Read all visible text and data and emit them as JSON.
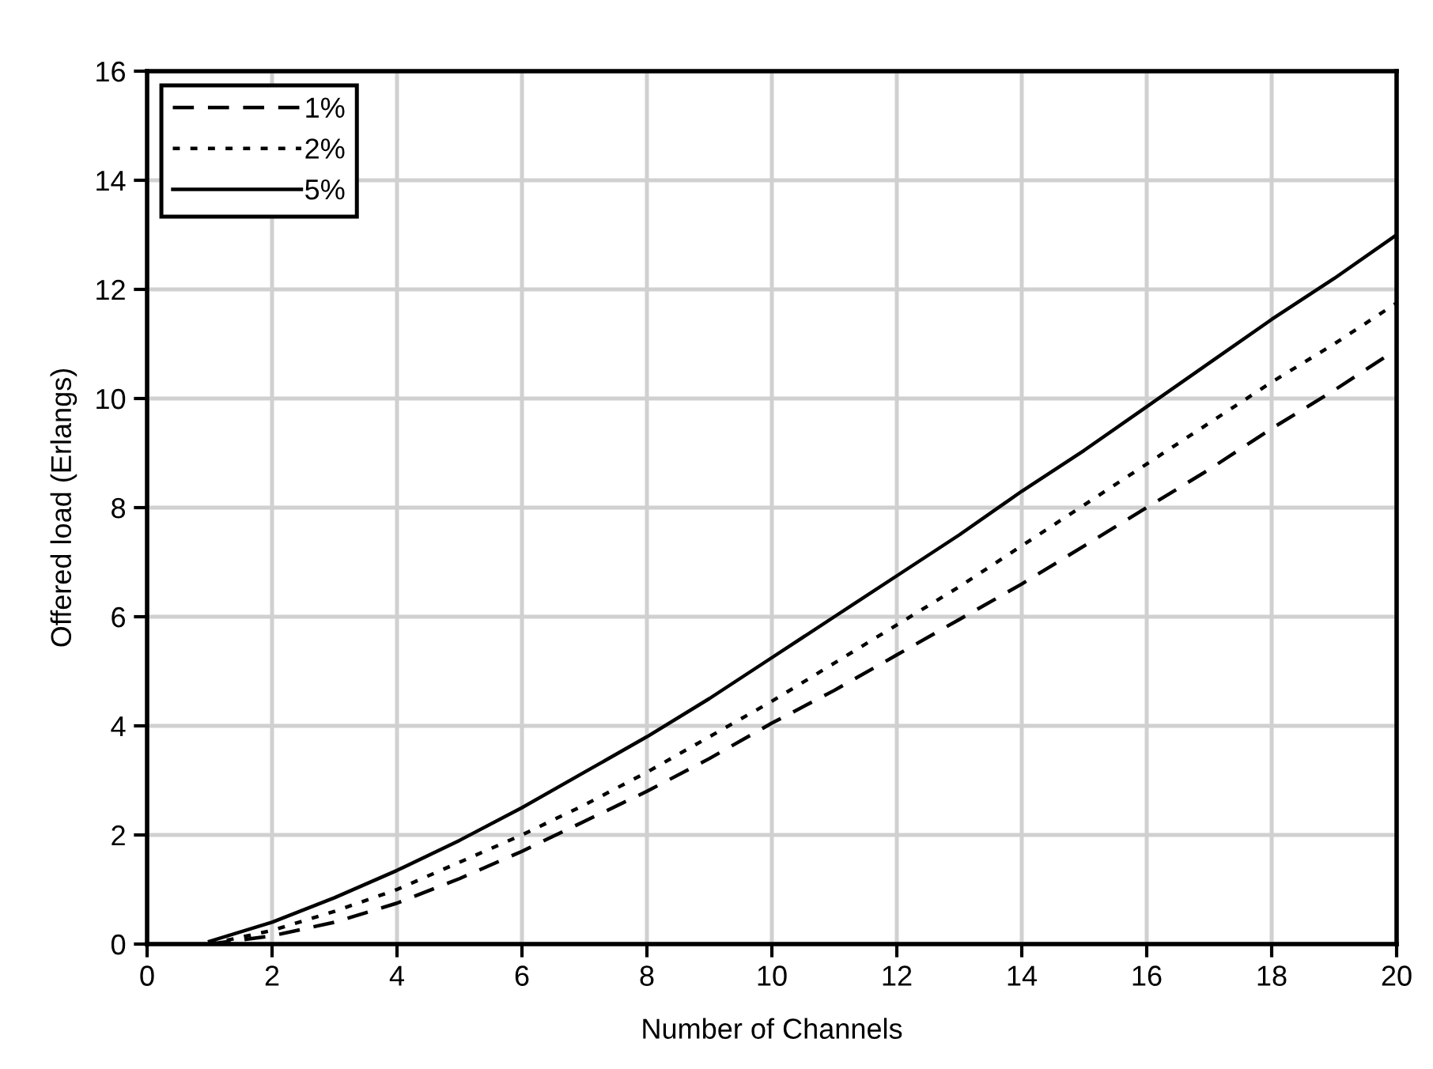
{
  "chart_data": {
    "type": "line",
    "xlabel": "Number of Channels",
    "ylabel": "Offered load (Erlangs)",
    "xlim": [
      0,
      20
    ],
    "ylim": [
      0,
      16
    ],
    "xticks": [
      0,
      2,
      4,
      6,
      8,
      10,
      12,
      14,
      16,
      18,
      20
    ],
    "yticks": [
      0,
      2,
      4,
      6,
      8,
      10,
      12,
      14,
      16
    ],
    "grid": true,
    "legend": "top left",
    "marker": "none",
    "series": [
      {
        "name": "1%",
        "color": "#000000",
        "line_style": "dashed",
        "x": [
          1,
          2,
          3,
          4,
          5,
          6,
          7,
          8,
          9,
          10,
          11,
          12,
          13,
          14,
          15,
          16,
          17,
          18,
          19,
          20
        ],
        "values": [
          0,
          0.15,
          0.4,
          0.75,
          1.2,
          1.7,
          2.25,
          2.8,
          3.4,
          4.05,
          4.65,
          5.3,
          5.95,
          6.6,
          7.3,
          8.0,
          8.7,
          9.45,
          10.15,
          10.9
        ]
      },
      {
        "name": "2%",
        "color": "#000000",
        "line_style": "dotted",
        "x": [
          1,
          2,
          3,
          4,
          5,
          6,
          7,
          8,
          9,
          10,
          11,
          12,
          13,
          14,
          15,
          16,
          17,
          18,
          19,
          20
        ],
        "values": [
          0,
          0.25,
          0.6,
          1.0,
          1.5,
          2.0,
          2.55,
          3.15,
          3.8,
          4.45,
          5.15,
          5.85,
          6.55,
          7.3,
          8.05,
          8.8,
          9.55,
          10.3,
          11.0,
          11.75
        ]
      },
      {
        "name": "5%",
        "color": "#000000",
        "line_style": "solid",
        "x": [
          1,
          2,
          3,
          4,
          5,
          6,
          7,
          8,
          9,
          10,
          11,
          12,
          13,
          14,
          15,
          16,
          17,
          18,
          19,
          20
        ],
        "values": [
          0.05,
          0.4,
          0.85,
          1.35,
          1.9,
          2.5,
          3.15,
          3.8,
          4.5,
          5.25,
          6.0,
          6.75,
          7.5,
          8.3,
          9.05,
          9.85,
          10.65,
          11.45,
          12.2,
          13.0
        ]
      }
    ]
  }
}
